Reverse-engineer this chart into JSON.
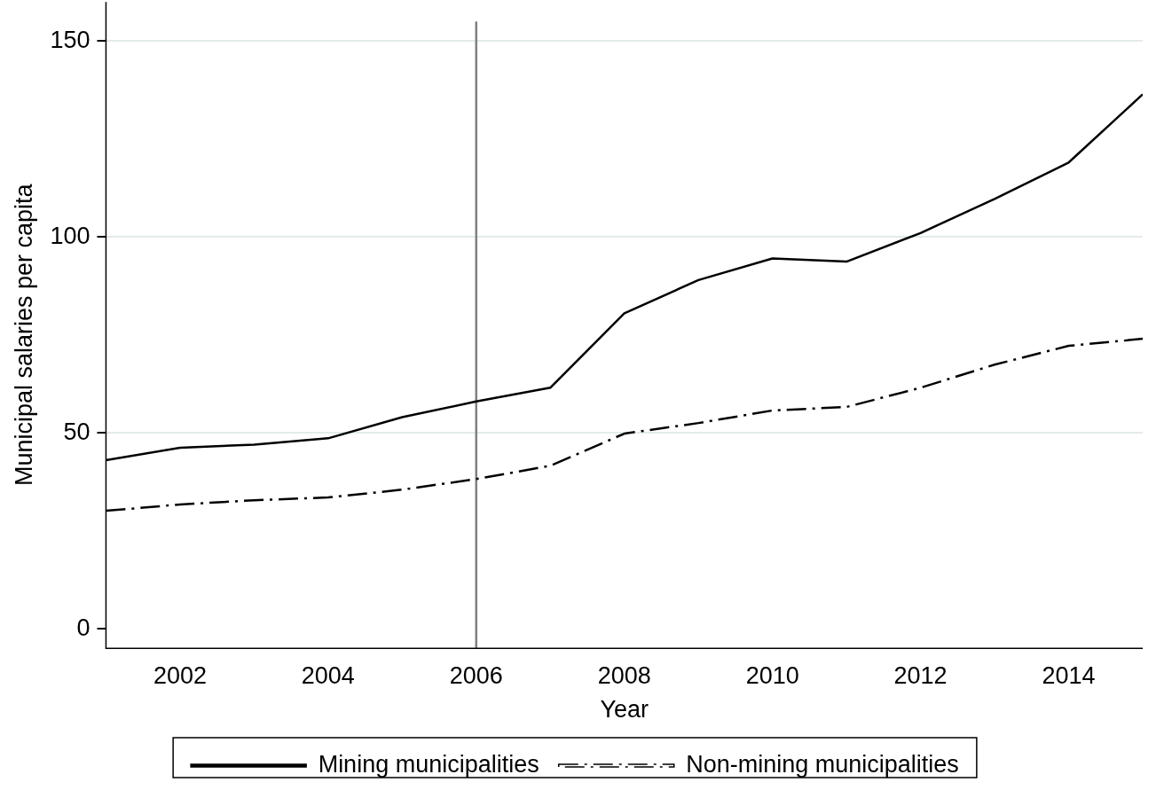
{
  "chart_data": {
    "type": "line",
    "xlabel": "Year",
    "ylabel": "Municipal salaries per capita",
    "x": [
      2001,
      2002,
      2003,
      2004,
      2005,
      2006,
      2007,
      2008,
      2009,
      2010,
      2011,
      2012,
      2013,
      2014,
      2015
    ],
    "series": [
      {
        "name": "Mining municipalities",
        "color": "#000000",
        "line_style": "solid",
        "values": [
          43.0,
          46.2,
          47.0,
          48.6,
          54.0,
          58.0,
          61.5,
          80.5,
          89.0,
          94.5,
          93.7,
          101.0,
          109.7,
          119.0,
          136.4
        ]
      },
      {
        "name": "Non-mining municipalities",
        "color": "#000000",
        "line_style": "dashed",
        "values": [
          30.1,
          31.7,
          32.8,
          33.5,
          35.5,
          38.2,
          41.6,
          49.8,
          52.5,
          55.7,
          56.6,
          61.5,
          67.4,
          72.2,
          74.0
        ]
      }
    ],
    "xlim": [
      2001,
      2015
    ],
    "xticks": [
      2002,
      2004,
      2006,
      2008,
      2010,
      2012,
      2014
    ],
    "ylim": [
      -5,
      155
    ],
    "yticks": [
      0,
      50,
      100,
      150
    ],
    "ref_lines": [
      {
        "axis": "x",
        "value": 2006,
        "color": "#808080"
      }
    ],
    "grid": "y",
    "legend": "bottom",
    "marker": "none"
  }
}
